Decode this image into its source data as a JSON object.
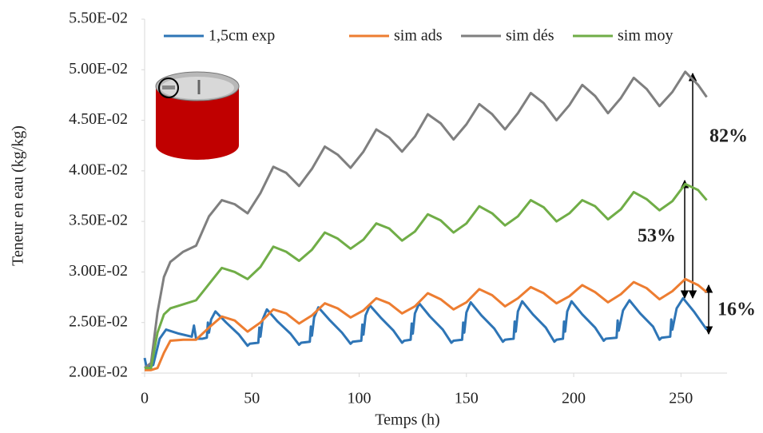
{
  "chart_data": {
    "type": "line",
    "xlabel": "Temps (h)",
    "ylabel": "Teneur en eau (kg/kg)",
    "xlim": [
      0,
      270
    ],
    "xticks": [
      0,
      50,
      100,
      150,
      200,
      250
    ],
    "ylim": [
      0.02,
      0.055
    ],
    "yticks": [
      {
        "value": 0.02,
        "label": "2.00E-02"
      },
      {
        "value": 0.025,
        "label": "2.50E-02"
      },
      {
        "value": 0.03,
        "label": "3.00E-02"
      },
      {
        "value": 0.035,
        "label": "3.50E-02"
      },
      {
        "value": 0.04,
        "label": "4.00E-02"
      },
      {
        "value": 0.045,
        "label": "4.50E-02"
      },
      {
        "value": 0.05,
        "label": "5.00E-02"
      },
      {
        "value": 0.055,
        "label": "5.50E-02"
      }
    ],
    "grid": false,
    "legend": "top",
    "annotations": [
      "82%",
      "53%",
      "16%"
    ],
    "series": [
      {
        "name": "1,5cm exp",
        "color": "#2e75b6",
        "x": [
          0,
          1,
          4,
          7,
          10,
          16,
          22,
          23,
          24,
          27,
          29,
          29.5,
          30,
          31,
          33,
          38,
          44,
          48,
          49,
          53,
          53.5,
          54,
          55,
          57,
          62,
          68,
          72,
          73,
          77,
          77.5,
          78,
          79,
          81,
          86,
          92,
          96,
          97,
          101,
          101.5,
          102,
          103,
          105,
          110,
          116,
          120,
          121,
          124,
          124.5,
          125,
          126,
          128,
          133,
          139,
          143,
          144,
          148,
          148.5,
          149,
          150,
          152,
          157,
          163,
          167,
          168,
          172,
          172.5,
          173,
          174,
          176,
          181,
          187,
          191,
          192,
          195,
          195.5,
          196,
          197,
          199,
          204,
          210,
          214,
          215,
          220,
          220.5,
          221,
          223,
          226,
          231,
          237,
          240,
          241,
          245,
          245.5,
          246,
          248,
          251,
          256,
          262
        ],
        "values": [
          0.0215,
          0.0205,
          0.0208,
          0.0234,
          0.0243,
          0.0239,
          0.0236,
          0.0247,
          0.0234,
          0.0234,
          0.0235,
          0.025,
          0.024,
          0.0253,
          0.0261,
          0.025,
          0.0238,
          0.0227,
          0.0229,
          0.023,
          0.0245,
          0.0236,
          0.0253,
          0.0263,
          0.0251,
          0.0239,
          0.0228,
          0.023,
          0.0231,
          0.0246,
          0.0237,
          0.0255,
          0.0265,
          0.0253,
          0.024,
          0.0229,
          0.0231,
          0.0232,
          0.0248,
          0.0238,
          0.0257,
          0.0267,
          0.0255,
          0.0242,
          0.023,
          0.0232,
          0.0233,
          0.0249,
          0.0239,
          0.0259,
          0.0269,
          0.0256,
          0.0243,
          0.023,
          0.0232,
          0.0233,
          0.025,
          0.024,
          0.026,
          0.027,
          0.0257,
          0.0244,
          0.0231,
          0.0233,
          0.0234,
          0.0251,
          0.0241,
          0.0261,
          0.0271,
          0.0258,
          0.0245,
          0.0231,
          0.0233,
          0.0234,
          0.0251,
          0.0241,
          0.0261,
          0.0271,
          0.0258,
          0.0245,
          0.0232,
          0.0234,
          0.0235,
          0.0252,
          0.0242,
          0.0262,
          0.0272,
          0.0259,
          0.0246,
          0.0233,
          0.0235,
          0.0236,
          0.0253,
          0.0243,
          0.0264,
          0.0274,
          0.0261,
          0.0243
        ]
      },
      {
        "name": "sim ads",
        "color": "#ed7d31",
        "x": [
          0,
          3,
          6,
          9,
          12,
          18,
          24,
          30,
          36,
          42,
          48,
          54,
          60,
          66,
          72,
          78,
          84,
          90,
          96,
          102,
          108,
          114,
          120,
          126,
          132,
          138,
          144,
          150,
          156,
          162,
          168,
          174,
          180,
          186,
          192,
          198,
          204,
          210,
          216,
          222,
          228,
          234,
          240,
          246,
          252,
          258,
          262
        ],
        "values": [
          0.0203,
          0.0203,
          0.0205,
          0.022,
          0.0232,
          0.0233,
          0.0233,
          0.0245,
          0.0256,
          0.0252,
          0.0241,
          0.025,
          0.0263,
          0.0259,
          0.0249,
          0.0257,
          0.0269,
          0.0264,
          0.0255,
          0.0262,
          0.0274,
          0.0269,
          0.0259,
          0.0266,
          0.0279,
          0.0273,
          0.0263,
          0.027,
          0.0283,
          0.0277,
          0.0266,
          0.0274,
          0.0285,
          0.0279,
          0.0269,
          0.0276,
          0.0287,
          0.028,
          0.027,
          0.0278,
          0.029,
          0.0284,
          0.0273,
          0.0281,
          0.0293,
          0.0287,
          0.028
        ]
      },
      {
        "name": "sim dés",
        "color": "#7f7f7f",
        "x": [
          0,
          3,
          6,
          9,
          12,
          18,
          24,
          30,
          36,
          42,
          48,
          54,
          60,
          66,
          72,
          78,
          84,
          90,
          96,
          102,
          108,
          114,
          120,
          126,
          132,
          138,
          144,
          150,
          156,
          162,
          168,
          174,
          180,
          186,
          192,
          198,
          204,
          210,
          216,
          222,
          228,
          234,
          240,
          246,
          252,
          258,
          262
        ],
        "values": [
          0.0205,
          0.021,
          0.026,
          0.0295,
          0.031,
          0.032,
          0.0326,
          0.0355,
          0.0371,
          0.0367,
          0.0358,
          0.0378,
          0.0404,
          0.0398,
          0.0385,
          0.0402,
          0.0424,
          0.0416,
          0.0403,
          0.0419,
          0.0441,
          0.0433,
          0.0419,
          0.0434,
          0.0456,
          0.0447,
          0.0431,
          0.0446,
          0.0466,
          0.0456,
          0.0441,
          0.0457,
          0.0477,
          0.0467,
          0.045,
          0.0465,
          0.0485,
          0.0474,
          0.0457,
          0.0472,
          0.0492,
          0.0481,
          0.0464,
          0.0478,
          0.0498,
          0.0485,
          0.0473
        ]
      },
      {
        "name": "sim moy",
        "color": "#70ad47",
        "x": [
          0,
          3,
          6,
          9,
          12,
          18,
          24,
          30,
          36,
          42,
          48,
          54,
          60,
          66,
          72,
          78,
          84,
          90,
          96,
          102,
          108,
          114,
          120,
          126,
          132,
          138,
          144,
          150,
          156,
          162,
          168,
          174,
          180,
          186,
          192,
          198,
          204,
          210,
          216,
          222,
          228,
          234,
          240,
          246,
          252,
          258,
          262
        ],
        "values": [
          0.0205,
          0.0205,
          0.024,
          0.0258,
          0.0264,
          0.0268,
          0.0272,
          0.0288,
          0.0304,
          0.03,
          0.0293,
          0.0305,
          0.0325,
          0.032,
          0.0311,
          0.0322,
          0.0339,
          0.0333,
          0.0323,
          0.0332,
          0.0348,
          0.0343,
          0.0331,
          0.034,
          0.0357,
          0.0351,
          0.0339,
          0.0348,
          0.0365,
          0.0358,
          0.0346,
          0.0355,
          0.0371,
          0.0364,
          0.035,
          0.0358,
          0.0371,
          0.0365,
          0.0352,
          0.0362,
          0.0379,
          0.0372,
          0.0361,
          0.037,
          0.0387,
          0.0381,
          0.0371
        ]
      }
    ]
  }
}
